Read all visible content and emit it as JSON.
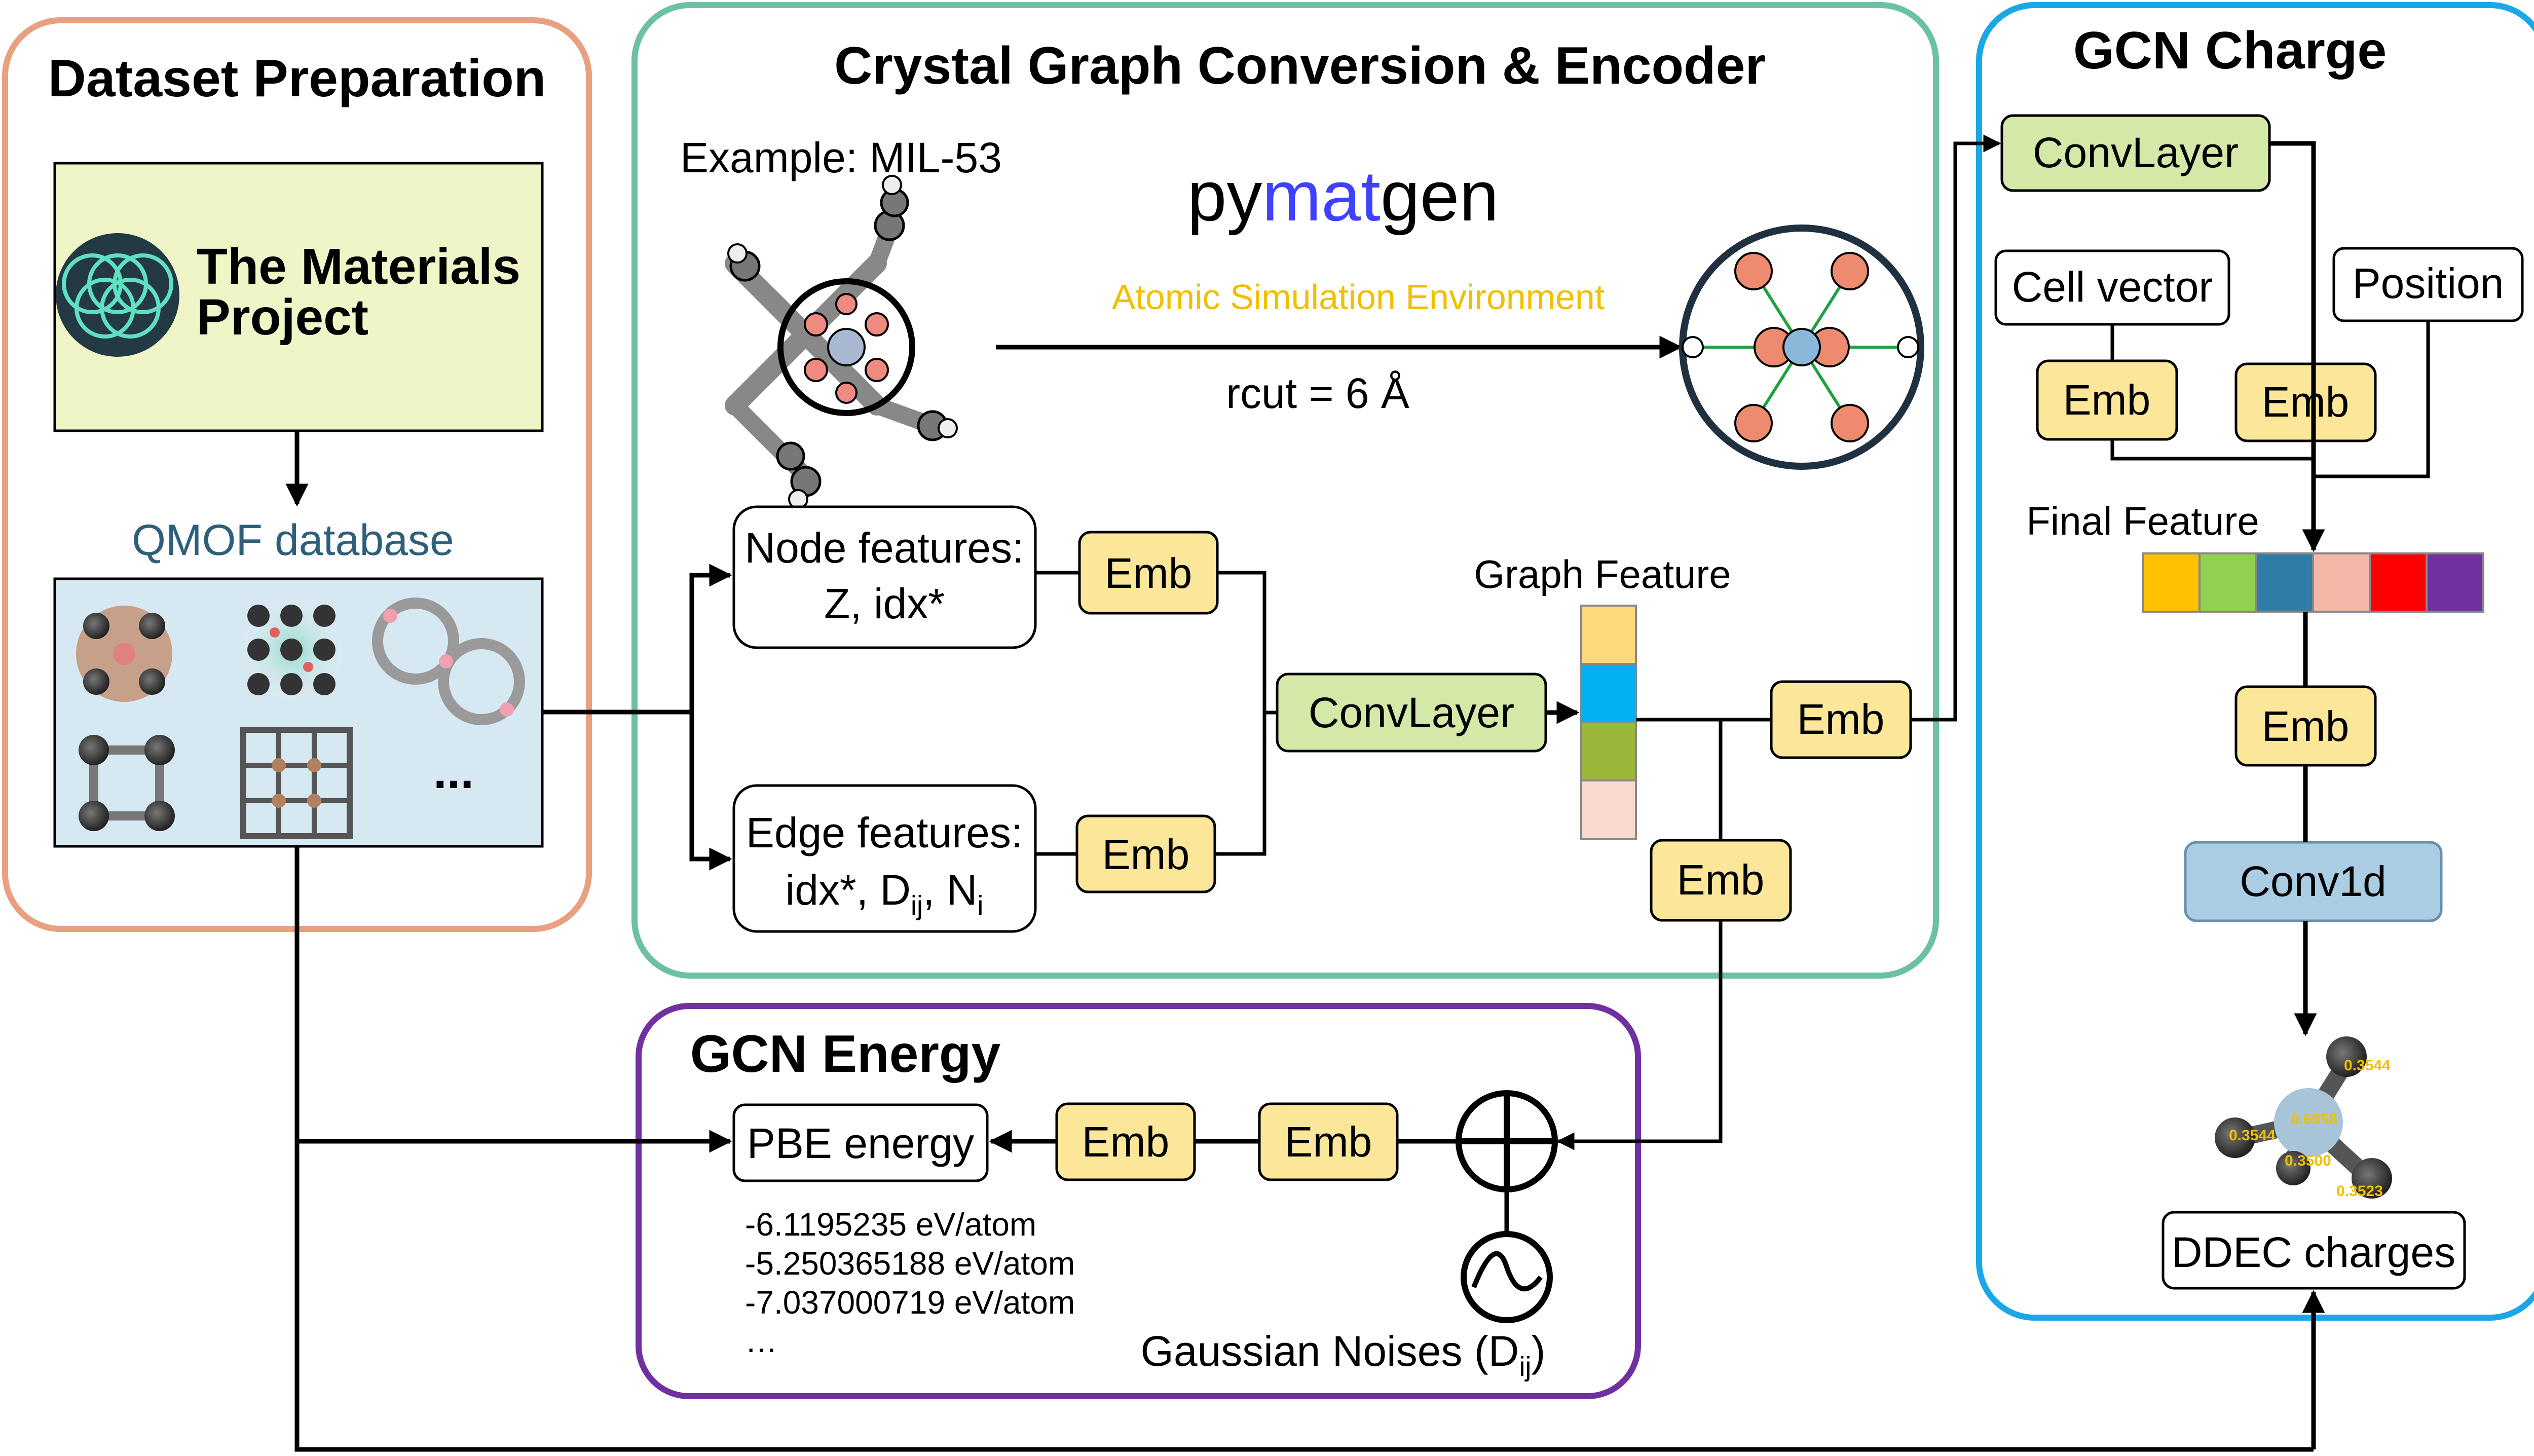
{
  "colors": {
    "dataset_frame": "#e8a080",
    "encoder_frame": "#6cc0a4",
    "charge_frame": "#1aa7e6",
    "energy_frame": "#7030a0",
    "emb_fill": "#fce699",
    "conv_fill": "#d4e8a8",
    "conv1d_fill": "#abcde3",
    "materials_project_fill": "#f0f5c8",
    "qmof_fill": "#d6e8f2",
    "qmof_label": "#2e5f7a",
    "ase_text": "#f0c000",
    "pymatgen_blue": "#4040ff",
    "graph_feature_cells": [
      "#fcd97a",
      "#00b0f0",
      "#9bb73a",
      "#f8d9cf"
    ],
    "final_feature_cells": [
      "#ffc000",
      "#92d050",
      "#2e7ea8",
      "#f4b8a8",
      "#ff0000",
      "#7030a0"
    ]
  },
  "dataset": {
    "title": "Dataset Preparation",
    "materials_project": {
      "line1": "The Materials",
      "line2": "Project",
      "icon": "materials-project-logo"
    },
    "qmof_label": "QMOF database",
    "ellipsis": "..."
  },
  "encoder": {
    "title": "Crystal Graph Conversion & Encoder",
    "example": "Example: MIL-53",
    "pymatgen": {
      "part1": "py",
      "part2": "mat",
      "part3": "gen"
    },
    "ase": "Atomic Simulation Environment",
    "rcut": "rcut = 6 Å",
    "node_features": {
      "line1": "Node features:",
      "line2": "Z, idx*"
    },
    "edge_features": {
      "line1": "Edge features:",
      "line2_prefix": "idx*, D",
      "sub1": "ij",
      "line2_mid": ", N",
      "sub2": "i"
    },
    "emb": "Emb",
    "convlayer": "ConvLayer",
    "graph_feature": "Graph Feature"
  },
  "charge": {
    "title": "GCN Charge",
    "convlayer": "ConvLayer",
    "cell_vector": "Cell vector",
    "position": "Position",
    "emb": "Emb",
    "final_feature": "Final Feature",
    "conv1d": "Conv1d",
    "ddec": "DDEC charges",
    "charge_values": [
      "0.3544",
      "0.6958",
      "0.3544",
      "0.3500",
      "0.3523"
    ]
  },
  "energy": {
    "title": "GCN Energy",
    "pbe": "PBE energy",
    "emb": "Emb",
    "values": [
      "-6.1195235 eV/atom",
      "-5.250365188 eV/atom",
      "-7.037000719 eV/atom",
      "…"
    ],
    "noise_prefix": "Gaussian Noises (D",
    "noise_sub": "ij",
    "noise_suffix": ")"
  }
}
